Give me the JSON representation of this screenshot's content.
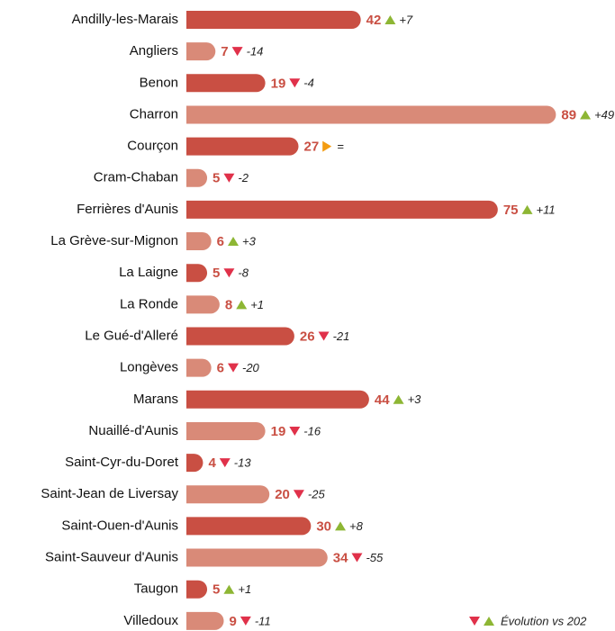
{
  "chart_data": {
    "type": "barh",
    "categories": [
      "Andilly-les-Marais",
      "Angliers",
      "Benon",
      "Charron",
      "Courçon",
      "Cram-Chaban",
      "Ferrières d'Aunis",
      "La Grève-sur-Mignon",
      "La Laigne",
      "La Ronde",
      "Le Gué-d'Alleré",
      "Longèves",
      "Marans",
      "Nuaillé-d'Aunis",
      "Saint-Cyr-du-Doret",
      "Saint-Jean de Liversay",
      "Saint-Ouen-d'Aunis",
      "Saint-Sauveur d'Aunis",
      "Taugon",
      "Villedoux"
    ],
    "values": [
      42,
      7,
      19,
      89,
      27,
      5,
      75,
      6,
      5,
      8,
      26,
      6,
      44,
      19,
      4,
      20,
      30,
      34,
      5,
      9
    ],
    "changes": [
      7,
      -14,
      -4,
      49,
      0,
      -2,
      11,
      3,
      -8,
      1,
      -21,
      -20,
      3,
      -16,
      -13,
      -25,
      8,
      -55,
      1,
      -11
    ],
    "change_labels": [
      "+7",
      "-14",
      "-4",
      "+49",
      "=",
      "-2",
      "+11",
      "+3",
      "-8",
      "+1",
      "-21",
      "-20",
      "+3",
      "-16",
      "-13",
      "-25",
      "+8",
      "-55",
      "+1",
      "-11"
    ],
    "colors": [
      "#c94f43",
      "#d98a78",
      "#c94f43",
      "#d98a78",
      "#c94f43",
      "#d98a78",
      "#c94f43",
      "#d98a78",
      "#c94f43",
      "#d98a78",
      "#c94f43",
      "#d98a78",
      "#c94f43",
      "#d98a78",
      "#c94f43",
      "#d98a78",
      "#c94f43",
      "#d98a78",
      "#c94f43",
      "#d98a78"
    ],
    "xlim": [
      0,
      90
    ],
    "legend": "Évolution vs 202"
  }
}
